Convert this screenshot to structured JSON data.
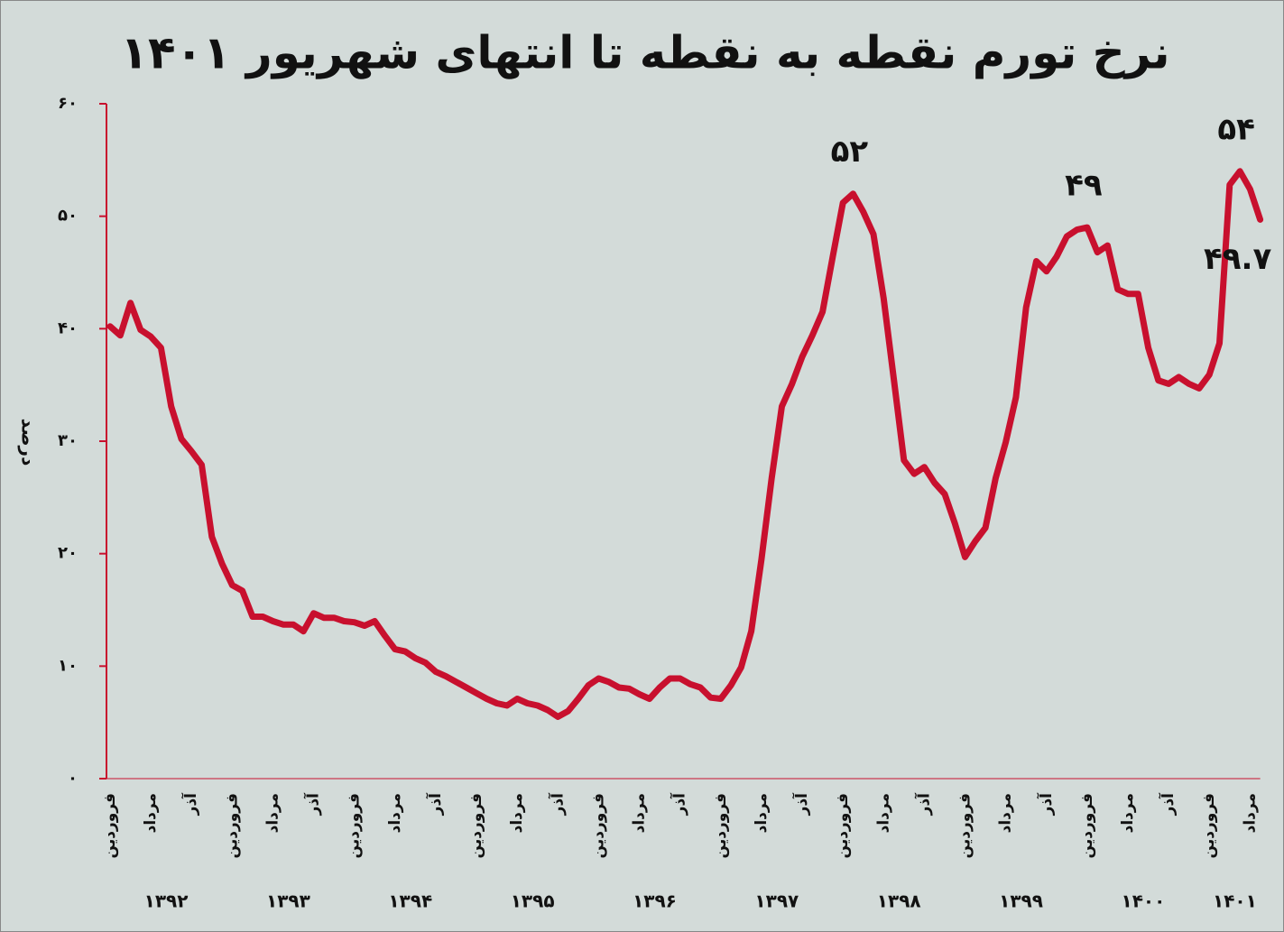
{
  "chart_data": {
    "type": "line",
    "title": "نرخ تورم نقطه به نقطه تا انتهای شهریور ۱۴۰۱",
    "y_label": "درصد",
    "color": "#c8102e",
    "ylim": [
      0,
      60
    ],
    "yticks": [
      {
        "value": 0,
        "label": "۰"
      },
      {
        "value": 10,
        "label": "۱۰"
      },
      {
        "value": 20,
        "label": "۲۰"
      },
      {
        "value": 30,
        "label": "۳۰"
      },
      {
        "value": 40,
        "label": "۴۰"
      },
      {
        "value": 50,
        "label": "۵۰"
      },
      {
        "value": 60,
        "label": "۶۰"
      }
    ],
    "categories": [
      "فروردین",
      null,
      null,
      null,
      "مرداد",
      null,
      null,
      null,
      "آذر",
      null,
      null,
      null,
      "فروردین",
      null,
      null,
      null,
      "مرداد",
      null,
      null,
      null,
      "آذر",
      null,
      null,
      null,
      "فروردین",
      null,
      null,
      null,
      "مرداد",
      null,
      null,
      null,
      "آذر",
      null,
      null,
      null,
      "فروردین",
      null,
      null,
      null,
      "مرداد",
      null,
      null,
      null,
      "آذر",
      null,
      null,
      null,
      "فروردین",
      null,
      null,
      null,
      "مرداد",
      null,
      null,
      null,
      "آذر",
      null,
      null,
      null,
      "فروردین",
      null,
      null,
      null,
      "مرداد",
      null,
      null,
      null,
      "آذر",
      null,
      null,
      null,
      "فروردین",
      null,
      null,
      null,
      "مرداد",
      null,
      null,
      null,
      "آذر",
      null,
      null,
      null,
      "فروردین",
      null,
      null,
      null,
      "مرداد",
      null,
      null,
      null,
      "آذر",
      null,
      null,
      null,
      "فروردین",
      null,
      null,
      null,
      "مرداد",
      null,
      null,
      null,
      "آذر",
      null,
      null,
      null,
      "فروردین",
      null,
      null,
      null,
      "مرداد",
      null
    ],
    "year_labels": [
      "۱۳۹۲",
      "۱۳۹۳",
      "۱۳۹۴",
      "۱۳۹۵",
      "۱۳۹۶",
      "۱۳۹۷",
      "۱۳۹۸",
      "۱۳۹۹",
      "۱۴۰۰",
      "۱۴۰۱"
    ],
    "values": [
      40.2,
      39.4,
      42.3,
      39.9,
      39.3,
      38.3,
      33.1,
      30.2,
      29.1,
      27.9,
      21.5,
      19.1,
      17.2,
      16.7,
      14.4,
      14.4,
      14.0,
      13.7,
      13.7,
      13.1,
      14.7,
      14.3,
      14.3,
      14.0,
      13.9,
      13.6,
      14.0,
      12.7,
      11.5,
      11.3,
      10.7,
      10.3,
      9.5,
      9.1,
      8.6,
      8.1,
      7.6,
      7.1,
      6.7,
      6.5,
      7.1,
      6.7,
      6.5,
      6.1,
      5.5,
      6.0,
      7.1,
      8.3,
      8.9,
      8.6,
      8.1,
      8.0,
      7.5,
      7.1,
      8.1,
      8.9,
      8.9,
      8.4,
      8.1,
      7.2,
      7.1,
      8.3,
      9.9,
      13.1,
      19.5,
      26.7,
      33.1,
      35.1,
      37.5,
      39.4,
      41.5,
      46.4,
      51.2,
      52,
      50.4,
      48.4,
      42.7,
      35.5,
      28.3,
      27.1,
      27.7,
      26.3,
      25.3,
      22.7,
      19.7,
      21.1,
      22.3,
      26.7,
      29.9,
      33.9,
      41.9,
      46.0,
      45.1,
      46.4,
      48.2,
      48.8,
      49,
      46.8,
      47.4,
      43.5,
      43.1,
      43.1,
      38.3,
      35.4,
      35.1,
      35.7,
      35.1,
      34.7,
      35.9,
      38.7,
      52.8,
      54,
      52.4,
      49.7
    ],
    "value_labels": [
      null,
      null,
      null,
      null,
      null,
      null,
      null,
      null,
      null,
      null,
      null,
      null,
      null,
      null,
      null,
      null,
      null,
      null,
      null,
      null,
      null,
      null,
      null,
      null,
      null,
      null,
      null,
      null,
      null,
      null,
      null,
      null,
      null,
      null,
      null,
      null,
      null,
      null,
      null,
      null,
      null,
      null,
      null,
      null,
      null,
      null,
      null,
      null,
      null,
      null,
      null,
      null,
      null,
      null,
      null,
      null,
      null,
      null,
      null,
      null,
      null,
      null,
      null,
      null,
      null,
      null,
      null,
      null,
      null,
      null,
      null,
      null,
      null,
      "۵۲",
      null,
      null,
      null,
      null,
      null,
      null,
      null,
      null,
      null,
      null,
      null,
      null,
      null,
      null,
      null,
      null,
      null,
      null,
      null,
      null,
      null,
      null,
      "۴۹",
      null,
      null,
      null,
      null,
      null,
      null,
      null,
      null,
      null,
      null,
      null,
      null,
      null,
      null,
      "۵۴",
      null,
      "۴۹.۷"
    ]
  }
}
